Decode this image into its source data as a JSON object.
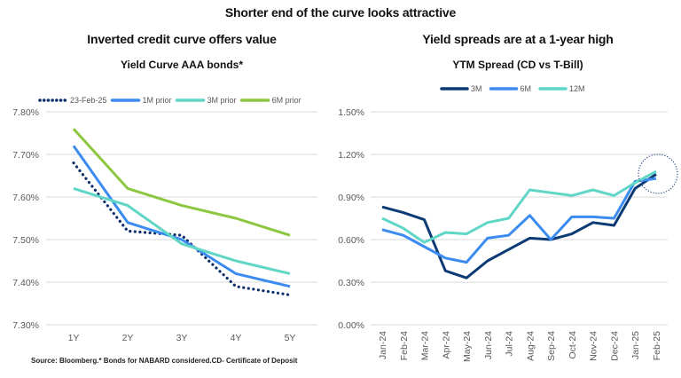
{
  "page": {
    "title": "Shorter end of the curve looks attractive",
    "source_note": "Source: Bloomberg.* Bonds for NABARD considered.CD- Certificate of Deposit"
  },
  "chart_data": [
    {
      "type": "line",
      "panel_heading": "Inverted credit curve offers value",
      "title": "Yield Curve AAA bonds*",
      "xlabel": "",
      "ylabel": "",
      "categories": [
        "1Y",
        "2Y",
        "3Y",
        "4Y",
        "5Y"
      ],
      "ylim": [
        7.3,
        7.8
      ],
      "yticks": [
        7.3,
        7.4,
        7.5,
        7.6,
        7.7,
        7.8
      ],
      "ytick_labels": [
        "7.30%",
        "7.40%",
        "7.50%",
        "7.60%",
        "7.70%",
        "7.80%"
      ],
      "grid": true,
      "legend_position": "top",
      "series": [
        {
          "name": "23-Feb-25",
          "color": "#0b2e6b",
          "style": "dotted",
          "values": [
            7.68,
            7.52,
            7.51,
            7.39,
            7.37
          ]
        },
        {
          "name": "1M prior",
          "color": "#3b8bf0",
          "style": "solid",
          "values": [
            7.72,
            7.54,
            7.5,
            7.42,
            7.39
          ]
        },
        {
          "name": "3M prior",
          "color": "#5fd6c6",
          "style": "solid",
          "values": [
            7.62,
            7.58,
            7.49,
            7.45,
            7.42
          ]
        },
        {
          "name": "6M prior",
          "color": "#8dc63f",
          "style": "solid",
          "values": [
            7.76,
            7.62,
            7.58,
            7.55,
            7.51
          ]
        }
      ]
    },
    {
      "type": "line",
      "panel_heading": "Yield spreads are at a 1-year high",
      "title": "YTM Spread (CD vs T-Bill)",
      "xlabel": "",
      "ylabel": "",
      "categories": [
        "Jan-24",
        "Feb-24",
        "Mar-24",
        "Apr-24",
        "May-24",
        "Jun-24",
        "Jul-24",
        "Aug-24",
        "Sep-24",
        "Oct-24",
        "Nov-24",
        "Dec-24",
        "Jan-25",
        "Feb-25"
      ],
      "ylim": [
        0.0,
        1.5
      ],
      "yticks": [
        0.0,
        0.3,
        0.6,
        0.9,
        1.2,
        1.5
      ],
      "ytick_labels": [
        "0.00%",
        "0.30%",
        "0.60%",
        "0.90%",
        "1.20%",
        "1.50%"
      ],
      "grid": true,
      "legend_position": "top",
      "annotation": "dotted circle highlighting Feb-25 values",
      "series": [
        {
          "name": "3M",
          "color": "#0b3a74",
          "style": "solid",
          "values": [
            0.83,
            0.79,
            0.74,
            0.38,
            0.33,
            0.45,
            0.53,
            0.61,
            0.6,
            0.64,
            0.72,
            0.7,
            0.96,
            1.06
          ]
        },
        {
          "name": "6M",
          "color": "#3b8bf0",
          "style": "solid",
          "values": [
            0.67,
            0.63,
            0.55,
            0.47,
            0.44,
            0.61,
            0.63,
            0.77,
            0.6,
            0.76,
            0.76,
            0.75,
            1.01,
            1.03
          ]
        },
        {
          "name": "12M",
          "color": "#5fd6c6",
          "style": "solid",
          "values": [
            0.75,
            0.68,
            0.58,
            0.65,
            0.64,
            0.72,
            0.75,
            0.95,
            0.93,
            0.91,
            0.95,
            0.91,
            1.0,
            1.08
          ]
        }
      ]
    }
  ]
}
